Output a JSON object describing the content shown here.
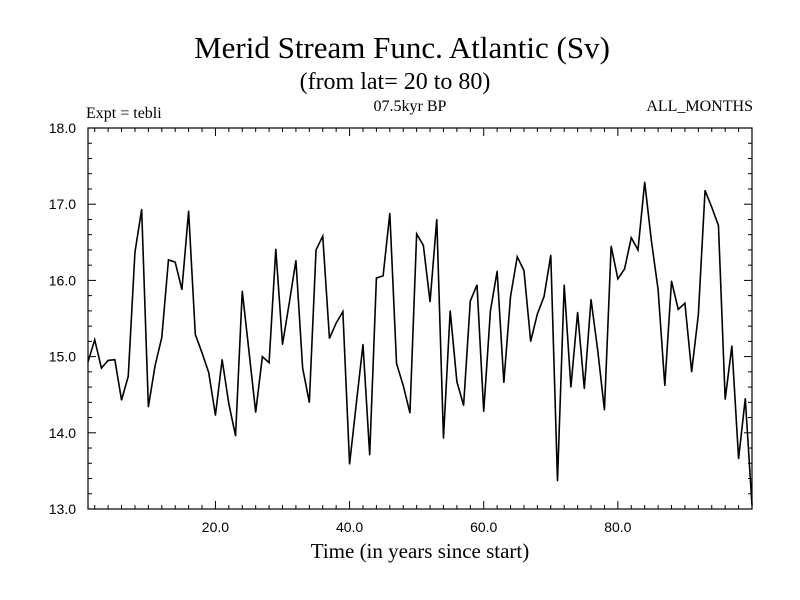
{
  "chart_data": {
    "type": "line",
    "title": "Merid Stream Func. Atlantic (Sv)",
    "subtitle": "(from lat= 20 to 80)",
    "annotation_left": "Expt = tebli",
    "annotation_center": "07.5kyr BP",
    "annotation_right": "ALL_MONTHS",
    "xlabel": "Time (in years since start)",
    "ylabel": "",
    "xlim": [
      1,
      100
    ],
    "ylim": [
      13.0,
      18.0
    ],
    "x_ticks": [
      20,
      40,
      60,
      80
    ],
    "x_tick_labels": [
      "20.0",
      "40.0",
      "60.0",
      "80.0"
    ],
    "y_ticks": [
      13,
      14,
      15,
      16,
      17,
      18
    ],
    "y_tick_labels": [
      "13.0",
      "14.0",
      "15.0",
      "16.0",
      "17.0",
      "18.0"
    ],
    "grid": false,
    "series": [
      {
        "name": "Merid Stream Func. Atlantic",
        "x": [
          1,
          2,
          3,
          4,
          5,
          6,
          7,
          8,
          9,
          10,
          11,
          12,
          13,
          14,
          15,
          16,
          17,
          18,
          19,
          20,
          21,
          22,
          23,
          24,
          25,
          26,
          27,
          28,
          29,
          30,
          31,
          32,
          33,
          34,
          35,
          36,
          37,
          38,
          39,
          40,
          41,
          42,
          43,
          44,
          45,
          46,
          47,
          48,
          49,
          50,
          51,
          52,
          53,
          54,
          55,
          56,
          57,
          58,
          59,
          60,
          61,
          62,
          63,
          64,
          65,
          66,
          67,
          68,
          69,
          70,
          71,
          72,
          73,
          74,
          75,
          76,
          77,
          78,
          79,
          80,
          81,
          82,
          83,
          84,
          85,
          86,
          87,
          88,
          89,
          90,
          91,
          92,
          93,
          94,
          95,
          96,
          97,
          98,
          99,
          100
        ],
        "values": [
          14.93,
          15.22,
          14.85,
          14.95,
          14.96,
          14.43,
          14.74,
          16.37,
          16.93,
          14.34,
          14.88,
          15.25,
          16.27,
          16.24,
          15.88,
          16.91,
          15.29,
          15.05,
          14.79,
          14.23,
          14.96,
          14.38,
          13.96,
          15.86,
          15.07,
          14.27,
          15.0,
          14.92,
          16.41,
          15.16,
          15.7,
          16.26,
          14.85,
          14.4,
          16.4,
          16.58,
          15.24,
          15.44,
          15.59,
          13.59,
          14.38,
          15.16,
          13.71,
          16.03,
          16.06,
          16.88,
          14.91,
          14.62,
          14.26,
          16.61,
          16.46,
          15.72,
          16.8,
          13.93,
          15.6,
          14.67,
          14.36,
          15.73,
          15.94,
          14.28,
          15.6,
          16.12,
          14.66,
          15.79,
          16.31,
          16.13,
          15.2,
          15.56,
          15.79,
          16.33,
          13.37,
          15.94,
          14.6,
          15.58,
          14.58,
          15.75,
          15.08,
          14.3,
          16.45,
          16.02,
          16.15,
          16.56,
          16.4,
          17.29,
          16.52,
          15.88,
          14.62,
          15.99,
          15.62,
          15.7,
          14.8,
          15.55,
          17.18,
          16.96,
          16.72,
          14.44,
          15.14,
          13.66,
          14.45,
          13.05
        ]
      }
    ]
  }
}
